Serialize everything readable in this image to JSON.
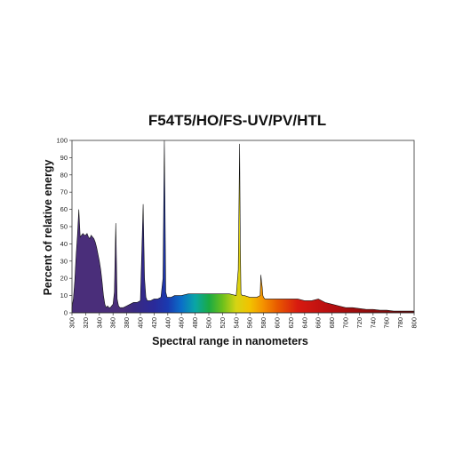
{
  "chart_data": {
    "type": "area",
    "title": "F54T5/HO/FS-UV/PV/HTL",
    "xlabel": "Spectral range in nanometers",
    "ylabel": "Percent of relative energy",
    "xlim": [
      300,
      800
    ],
    "ylim": [
      0,
      100
    ],
    "x_ticks": [
      300,
      320,
      340,
      360,
      380,
      400,
      420,
      440,
      460,
      480,
      500,
      520,
      540,
      560,
      580,
      600,
      620,
      640,
      660,
      680,
      700,
      720,
      740,
      760,
      780,
      800
    ],
    "y_ticks": [
      0,
      10,
      20,
      30,
      40,
      50,
      60,
      70,
      80,
      90,
      100
    ],
    "grid": false,
    "legend": "none",
    "fill": "visible-spectrum gradient below 400 nm dark violet",
    "series": [
      {
        "x": [
          300,
          302,
          304,
          306,
          308,
          310,
          312,
          314,
          316,
          318,
          320,
          322,
          324,
          326,
          328,
          330,
          332,
          334,
          336,
          338,
          340,
          342,
          344,
          346,
          348,
          350,
          352,
          354,
          356,
          358,
          360,
          362,
          364,
          366,
          368,
          370,
          375,
          380,
          385,
          390,
          395,
          400,
          402,
          404,
          406,
          408,
          410,
          415,
          420,
          425,
          430,
          433,
          435,
          436,
          437,
          439,
          442,
          445,
          450,
          460,
          470,
          480,
          490,
          500,
          510,
          520,
          530,
          540,
          543,
          545,
          546,
          547,
          549,
          552,
          560,
          570,
          575,
          576,
          577,
          578,
          579,
          580,
          582,
          585,
          590,
          600,
          610,
          620,
          630,
          640,
          650,
          660,
          670,
          680,
          690,
          700,
          710,
          720,
          730,
          740,
          750,
          760,
          770,
          780,
          790,
          800
        ],
        "y": [
          3,
          8,
          18,
          33,
          45,
          60,
          44,
          45,
          46,
          45,
          45,
          46,
          44,
          43,
          45,
          44,
          43,
          41,
          38,
          34,
          30,
          25,
          18,
          10,
          5,
          3,
          4,
          3,
          3,
          4,
          5,
          12,
          52,
          8,
          4,
          3,
          3,
          4,
          5,
          6,
          6,
          7,
          35,
          63,
          20,
          9,
          7,
          7,
          8,
          8,
          9,
          20,
          100,
          60,
          12,
          9,
          9,
          9,
          10,
          10,
          11,
          11,
          11,
          11,
          11,
          11,
          11,
          10,
          25,
          98,
          40,
          11,
          10,
          10,
          9,
          9,
          10,
          22,
          18,
          15,
          10,
          9,
          8,
          8,
          8,
          8,
          8,
          8,
          8,
          7,
          7,
          8,
          6,
          5,
          4,
          3,
          3,
          2.5,
          2,
          2,
          1.5,
          1.5,
          1,
          1,
          1,
          1
        ]
      }
    ]
  }
}
